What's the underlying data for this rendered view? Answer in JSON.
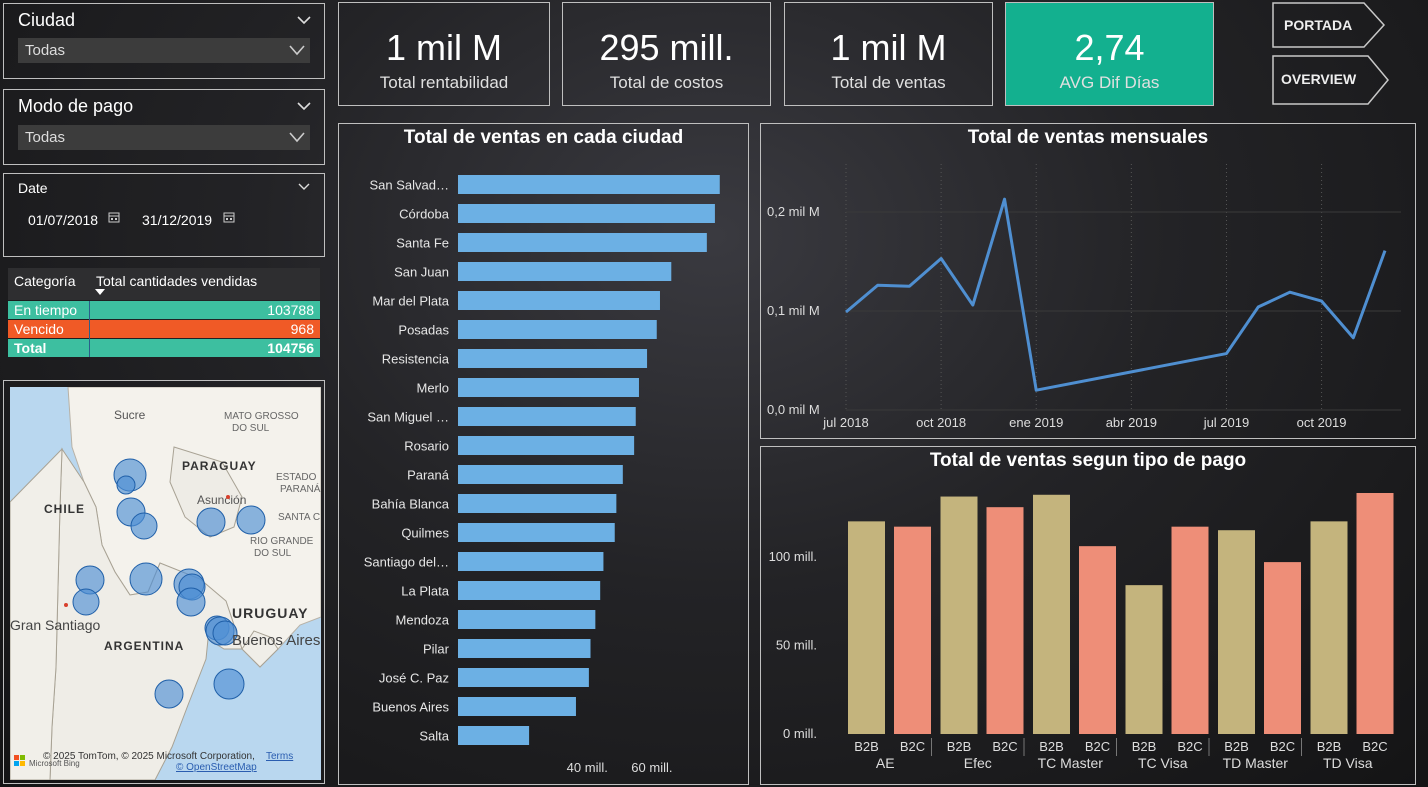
{
  "slicers": {
    "ciudad": {
      "title": "Ciudad",
      "value": "Todas"
    },
    "modo_pago": {
      "title": "Modo de pago",
      "value": "Todas"
    },
    "date": {
      "title": "Date",
      "start": "01/07/2018",
      "end": "31/12/2019"
    }
  },
  "kpis": [
    {
      "value": "1 mil M",
      "label": "Total rentabilidad"
    },
    {
      "value": "295 mill.",
      "label": "Total de costos"
    },
    {
      "value": "1 mil M",
      "label": "Total de ventas"
    },
    {
      "value": "2,74",
      "label": "AVG Dif Días"
    }
  ],
  "nav": {
    "portada": "PORTADA",
    "overview": "OVERVIEW"
  },
  "table": {
    "headers": [
      "Categoría",
      "Total cantidades vendidas"
    ],
    "rows": [
      {
        "label": "En tiempo",
        "value": "103788"
      },
      {
        "label": "Vencido",
        "value": "968"
      },
      {
        "label": "Total",
        "value": "104756"
      }
    ]
  },
  "map": {
    "labels": [
      "Sucre",
      "MATO GROSSO",
      "DO SUL",
      "PARAGUAY",
      "ESTADO",
      "PARANÁ",
      "CHILE",
      "Asunción",
      "SANTA C",
      "RIO GRANDE",
      "DO SUL",
      "Gran Santiago",
      "ARGENTINA",
      "URUGUAY",
      "Buenos Aires"
    ],
    "attribution": "© 2025 TomTom, © 2025 Microsoft Corporation,",
    "terms": "Terms",
    "osm": "© OpenStreetMap",
    "bing": "Microsoft Bing"
  },
  "colors": {
    "accent": "#13b08f",
    "bar_blue": "#6cb0e4",
    "line_blue": "#4f8fd1",
    "tan": "#c4b47d",
    "salmon": "#ee8e78",
    "en_tiempo": "#3dbfa0",
    "vencido": "#f05a26"
  },
  "charts": {
    "ciudad": {
      "type": "bar",
      "title": "Total de ventas en cada ciudad",
      "categories": [
        "San Salvad…",
        "Córdoba",
        "Santa Fe",
        "San Juan",
        "Mar del Plata",
        "Posadas",
        "Resistencia",
        "Merlo",
        "San Miguel …",
        "Rosario",
        "Paraná",
        "Bahía Blanca",
        "Quilmes",
        "Santiago del…",
        "La Plata",
        "Mendoza",
        "Pilar",
        "José C. Paz",
        "Buenos Aires",
        "Salta"
      ],
      "values": [
        81,
        79.5,
        77,
        66,
        62.5,
        61.5,
        58.5,
        56,
        55,
        54.5,
        51,
        49,
        48.5,
        45,
        44,
        42.5,
        41,
        40.5,
        36.5,
        22
      ],
      "xticks": [
        {
          "v": 40,
          "label": "40 mill."
        },
        {
          "v": 60,
          "label": "60 mill."
        }
      ],
      "xlim": [
        0,
        82
      ]
    },
    "mensual": {
      "type": "line",
      "title": "Total de ventas mensuales",
      "x": [
        "2018-07",
        "2018-08",
        "2018-09",
        "2018-10",
        "2018-11",
        "2018-12",
        "2019-01",
        "2019-07",
        "2019-08",
        "2019-09",
        "2019-10",
        "2019-11",
        "2019-12"
      ],
      "values": [
        0.099,
        0.126,
        0.125,
        0.153,
        0.106,
        0.213,
        0.02,
        0.057,
        0.104,
        0.119,
        0.11,
        0.073,
        0.161
      ],
      "yticks": [
        {
          "v": 0,
          "label": "0,0 mil M"
        },
        {
          "v": 0.1,
          "label": "0,1 mil M"
        },
        {
          "v": 0.2,
          "label": "0,2 mil M"
        }
      ],
      "xticks": [
        {
          "m": "2018-07",
          "label": "jul 2018"
        },
        {
          "m": "2018-10",
          "label": "oct 2018"
        },
        {
          "m": "2019-01",
          "label": "ene 2019"
        },
        {
          "m": "2019-04",
          "label": "abr 2019"
        },
        {
          "m": "2019-07",
          "label": "jul 2019"
        },
        {
          "m": "2019-10",
          "label": "oct 2019"
        }
      ],
      "ylim": [
        0,
        0.2
      ]
    },
    "tipo_pago": {
      "type": "bar",
      "title": "Total de ventas segun tipo de pago",
      "groups": [
        "AE",
        "Efec",
        "TC Master",
        "TC Visa",
        "TD Master",
        "TD Visa"
      ],
      "subcategories": [
        "B2B",
        "B2C"
      ],
      "values": [
        [
          120,
          117
        ],
        [
          134,
          128
        ],
        [
          135,
          106
        ],
        [
          84,
          117
        ],
        [
          115,
          97
        ],
        [
          120,
          136
        ]
      ],
      "yticks": [
        {
          "v": 0,
          "label": "0 mill."
        },
        {
          "v": 50,
          "label": "50 mill."
        },
        {
          "v": 100,
          "label": "100 mill."
        }
      ],
      "ylim": [
        0,
        136
      ]
    }
  }
}
